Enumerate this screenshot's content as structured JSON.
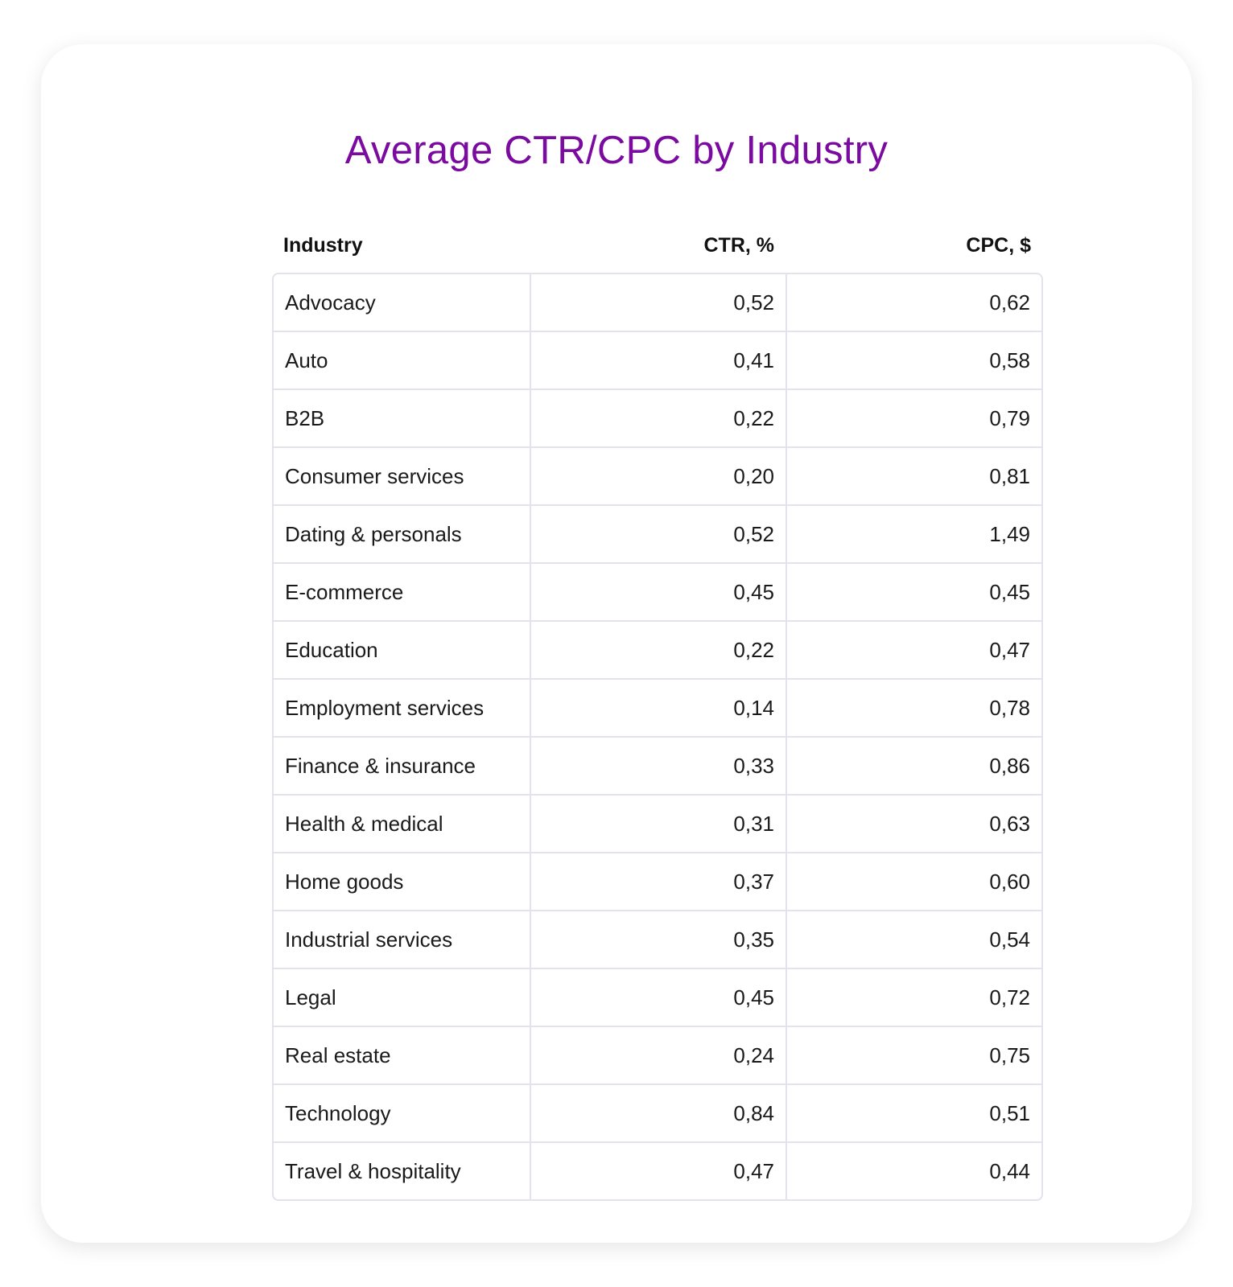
{
  "title": "Average CTR/CPC by Industry",
  "headers": [
    "Industry",
    "CTR, %",
    "CPC, $"
  ],
  "rows": [
    [
      "Advocacy",
      "0,52",
      "0,62"
    ],
    [
      "Auto",
      "0,41",
      "0,58"
    ],
    [
      "B2B",
      "0,22",
      "0,79"
    ],
    [
      "Consumer services",
      "0,20",
      "0,81"
    ],
    [
      "Dating & personals",
      "0,52",
      "1,49"
    ],
    [
      "E-commerce",
      "0,45",
      "0,45"
    ],
    [
      "Education",
      "0,22",
      "0,47"
    ],
    [
      "Employment services",
      "0,14",
      "0,78"
    ],
    [
      "Finance & insurance",
      "0,33",
      "0,86"
    ],
    [
      "Health & medical",
      "0,31",
      "0,63"
    ],
    [
      "Home goods",
      "0,37",
      "0,60"
    ],
    [
      "Industrial services",
      "0,35",
      "0,54"
    ],
    [
      "Legal",
      "0,45",
      "0,72"
    ],
    [
      "Real estate",
      "0,24",
      "0,75"
    ],
    [
      "Technology",
      "0,84",
      "0,51"
    ],
    [
      "Travel & hospitality",
      "0,47",
      "0,44"
    ]
  ],
  "colors": {
    "title": "#7a0aa0",
    "border": "#e3e3ec"
  }
}
